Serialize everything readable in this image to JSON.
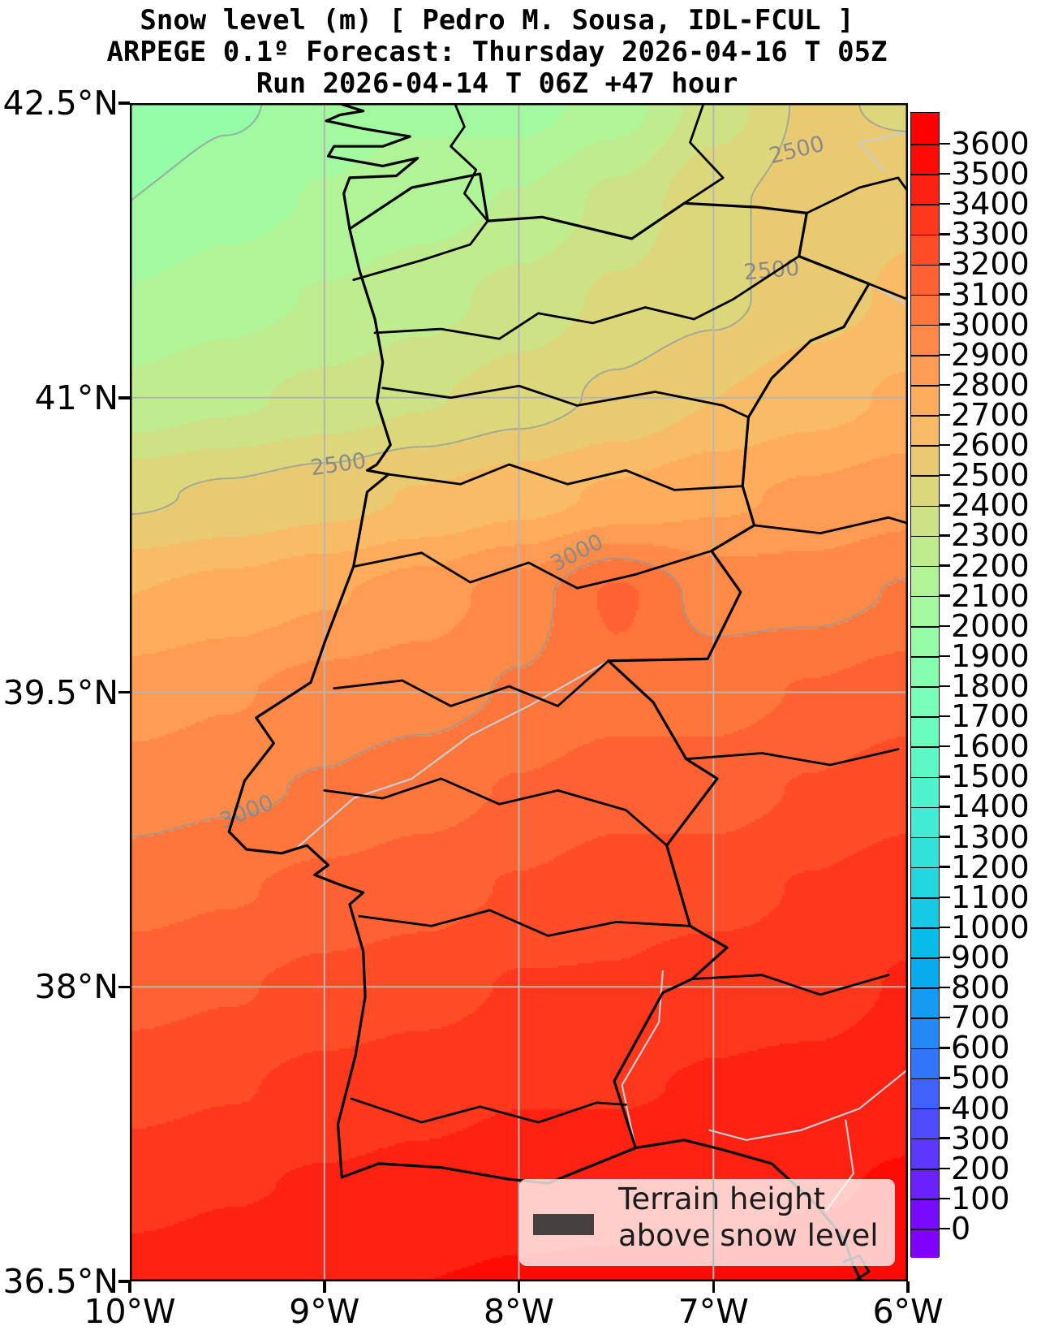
{
  "title": {
    "line1": "Snow level (m) [ Pedro M. Sousa, IDL-FCUL ]",
    "line2": "ARPEGE 0.1º Forecast: Thursday 2026-04-16 T 05Z",
    "line3": "Run 2026-04-14 T 06Z +47 hour"
  },
  "axes": {
    "lat_ticks": [
      {
        "label": "42.5°N",
        "value": 42.5
      },
      {
        "label": "41°N",
        "value": 41
      },
      {
        "label": "39.5°N",
        "value": 39.5
      },
      {
        "label": "38°N",
        "value": 38
      },
      {
        "label": "36.5°N",
        "value": 36.5
      }
    ],
    "lon_ticks": [
      {
        "label": "10°W",
        "value": -10
      },
      {
        "label": "9°W",
        "value": -9
      },
      {
        "label": "8°W",
        "value": -8
      },
      {
        "label": "7°W",
        "value": -7
      },
      {
        "label": "6°W",
        "value": -6
      }
    ]
  },
  "colorbar": {
    "min": 0,
    "max": 3600,
    "step": 100,
    "tick_values": [
      0,
      100,
      200,
      300,
      400,
      500,
      600,
      700,
      800,
      900,
      1000,
      1100,
      1200,
      1300,
      1400,
      1500,
      1600,
      1700,
      1800,
      1900,
      2000,
      2100,
      2200,
      2300,
      2400,
      2500,
      2600,
      2700,
      2800,
      2900,
      3000,
      3100,
      3200,
      3300,
      3400,
      3500,
      3600
    ],
    "colormap": "rainbow",
    "over_color": "#ff0000",
    "under_color": "#8000ff"
  },
  "legend": {
    "label_line1": "Terrain height",
    "label_line2": "above snow level",
    "swatch_color": "#474040"
  },
  "contour_labels": [
    {
      "text": "2500",
      "lon": -6.57,
      "lat": 42.26,
      "rot": -14
    },
    {
      "text": "2500",
      "lon": -6.7,
      "lat": 41.65,
      "rot": -5
    },
    {
      "text": "2500",
      "lon": -8.93,
      "lat": 40.66,
      "rot": -8
    },
    {
      "text": "3000",
      "lon": -7.7,
      "lat": 40.21,
      "rot": -27
    },
    {
      "text": "3000",
      "lon": -9.4,
      "lat": 38.89,
      "rot": -22
    }
  ],
  "chart_data": {
    "type": "heatmap",
    "variable": "Snow level (m)",
    "model": "ARPEGE 0.1º",
    "valid_time": "Thursday 2026-04-16 T 05Z",
    "run_time": "2026-04-14 T 06Z",
    "lead_hours": 47,
    "lon_range": [
      -10,
      -6
    ],
    "lat_range": [
      36.5,
      42.5
    ],
    "fill_range": [
      0,
      3600
    ],
    "fill_bin_size": 100,
    "grid_lons": [
      -10,
      -9.5,
      -9,
      -8.5,
      -8,
      -7.5,
      -7,
      -6.5,
      -6
    ],
    "grid_lats": [
      42.5,
      42,
      41.5,
      41,
      40.5,
      40,
      39.5,
      39,
      38.5,
      38,
      37.5,
      37,
      36.5
    ],
    "values_m": [
      [
        1900,
        1980,
        2050,
        2080,
        2060,
        2150,
        2350,
        2520,
        2480
      ],
      [
        2000,
        2060,
        2110,
        2160,
        2210,
        2330,
        2480,
        2540,
        2580
      ],
      [
        2110,
        2160,
        2210,
        2260,
        2340,
        2420,
        2470,
        2560,
        2620
      ],
      [
        2230,
        2280,
        2330,
        2390,
        2450,
        2520,
        2600,
        2660,
        2720
      ],
      [
        2480,
        2520,
        2560,
        2610,
        2660,
        2720,
        2780,
        2820,
        2860
      ],
      [
        2700,
        2740,
        2790,
        2850,
        2950,
        3120,
        2960,
        2960,
        3010
      ],
      [
        2850,
        2890,
        2940,
        2960,
        3010,
        3060,
        3060,
        3110,
        3160
      ],
      [
        2950,
        2980,
        3010,
        3060,
        3110,
        3160,
        3160,
        3210,
        3260
      ],
      [
        3060,
        3090,
        3130,
        3160,
        3210,
        3260,
        3260,
        3310,
        3360
      ],
      [
        3160,
        3190,
        3230,
        3260,
        3310,
        3310,
        3360,
        3360,
        3410
      ],
      [
        3260,
        3290,
        3330,
        3360,
        3390,
        3390,
        3410,
        3430,
        3460
      ],
      [
        3360,
        3390,
        3410,
        3430,
        3460,
        3460,
        3460,
        3490,
        3510
      ],
      [
        3440,
        3460,
        3480,
        3500,
        3510,
        3520,
        3520,
        3550,
        3560
      ]
    ],
    "contour_levels_gray": [
      2000,
      2500,
      3000
    ],
    "gridline_lons": [
      -9,
      -8,
      -7
    ],
    "gridline_lats": [
      41,
      39.5,
      38
    ]
  }
}
